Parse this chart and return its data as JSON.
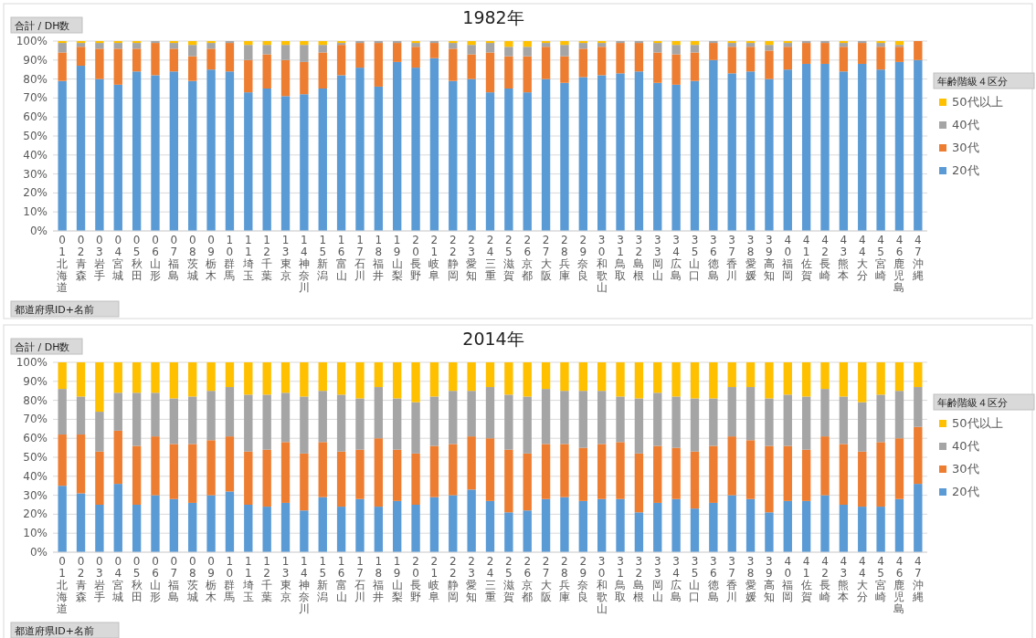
{
  "chart_data": [
    {
      "type": "bar",
      "title": "1982年",
      "ylabel": "合計 / DH数",
      "xlabel": "都道府県ID+名前",
      "legend_title": "年齢階級４区分",
      "stacked": true,
      "grid": "y",
      "legend": "right",
      "ylim": [
        0,
        100
      ],
      "yticks": [
        {
          "value": 0,
          "label": "0%"
        },
        {
          "value": 10,
          "label": "10%"
        },
        {
          "value": 20,
          "label": "20%"
        },
        {
          "value": 30,
          "label": "30%"
        },
        {
          "value": 40,
          "label": "40%"
        },
        {
          "value": 50,
          "label": "50%"
        },
        {
          "value": 60,
          "label": "60%"
        },
        {
          "value": 70,
          "label": "70%"
        },
        {
          "value": 80,
          "label": "80%"
        },
        {
          "value": 90,
          "label": "90%"
        },
        {
          "value": 100,
          "label": "100%"
        }
      ],
      "categories": [
        "01北海道",
        "02青森",
        "03岩手",
        "04宮城",
        "05秋田",
        "06山形",
        "07福島",
        "08茨城",
        "09栃木",
        "10群馬",
        "11埼玉",
        "12千葉",
        "13東京",
        "14神奈川",
        "15新潟",
        "16富山",
        "17石川",
        "18福井",
        "19山梨",
        "20長野",
        "21岐阜",
        "22静岡",
        "23愛知",
        "24三重",
        "25滋賀",
        "26京都",
        "27大阪",
        "28兵庫",
        "29奈良",
        "30和歌山",
        "31鳥取",
        "32島根",
        "33岡山",
        "34広島",
        "35山口",
        "36徳島",
        "37香川",
        "38愛媛",
        "39高知",
        "40福岡",
        "41佐賀",
        "42長崎",
        "43熊本",
        "44大分",
        "45宮崎",
        "46鹿児島",
        "47沖縄"
      ],
      "series": [
        {
          "name": "20代",
          "color": "#5b9bd5",
          "values": [
            79,
            87,
            80,
            77,
            84,
            82,
            84,
            79,
            85,
            84,
            73,
            75,
            71,
            72,
            75,
            82,
            86,
            76,
            89,
            86,
            91,
            79,
            80,
            73,
            75,
            73,
            80,
            78,
            81,
            82,
            83,
            84,
            78,
            77,
            79,
            90,
            83,
            84,
            80,
            85,
            88,
            88,
            84,
            88,
            85,
            89,
            90
          ]
        },
        {
          "name": "30代",
          "color": "#ed7d31",
          "values": [
            15,
            10,
            16,
            19,
            12,
            17,
            12,
            13,
            11,
            15,
            17,
            18,
            19,
            17,
            19,
            16,
            13,
            23,
            10,
            11,
            8,
            17,
            13,
            21,
            17,
            19,
            17,
            14,
            15,
            15,
            16,
            15,
            16,
            16,
            15,
            9,
            14,
            13,
            15,
            12,
            11,
            11,
            13,
            11,
            12,
            8,
            10
          ]
        },
        {
          "name": "40代",
          "color": "#a5a5a5",
          "values": [
            5,
            2,
            3,
            3,
            3,
            1,
            3,
            6,
            3,
            1,
            8,
            5,
            8,
            9,
            4,
            1,
            1,
            1,
            1,
            2,
            1,
            3,
            5,
            5,
            5,
            5,
            2,
            6,
            3,
            2,
            1,
            1,
            5,
            5,
            4,
            1,
            2,
            2,
            3,
            2,
            1,
            1,
            2,
            1,
            2,
            1,
            0
          ]
        },
        {
          "name": "50代以上",
          "color": "#ffc000",
          "values": [
            1,
            1,
            1,
            1,
            1,
            0,
            1,
            2,
            1,
            0,
            2,
            2,
            2,
            2,
            2,
            1,
            0,
            0,
            0,
            1,
            0,
            1,
            2,
            1,
            3,
            3,
            1,
            2,
            1,
            1,
            0,
            0,
            1,
            2,
            2,
            0,
            1,
            1,
            2,
            1,
            0,
            0,
            1,
            0,
            1,
            2,
            0
          ]
        }
      ]
    },
    {
      "type": "bar",
      "title": "2014年",
      "ylabel": "合計 / DH数",
      "xlabel": "都道府県ID+名前",
      "legend_title": "年齢階級４区分",
      "stacked": true,
      "grid": "y",
      "legend": "right",
      "ylim": [
        0,
        100
      ],
      "yticks": [
        {
          "value": 0,
          "label": "0%"
        },
        {
          "value": 10,
          "label": "10%"
        },
        {
          "value": 20,
          "label": "20%"
        },
        {
          "value": 30,
          "label": "30%"
        },
        {
          "value": 40,
          "label": "40%"
        },
        {
          "value": 50,
          "label": "50%"
        },
        {
          "value": 60,
          "label": "60%"
        },
        {
          "value": 70,
          "label": "70%"
        },
        {
          "value": 80,
          "label": "80%"
        },
        {
          "value": 90,
          "label": "90%"
        },
        {
          "value": 100,
          "label": "100%"
        }
      ],
      "categories": [
        "01北海道",
        "02青森",
        "03岩手",
        "04宮城",
        "05秋田",
        "06山形",
        "07福島",
        "08茨城",
        "09栃木",
        "10群馬",
        "11埼玉",
        "12千葉",
        "13東京",
        "14神奈川",
        "15新潟",
        "16富山",
        "17石川",
        "18福井",
        "19山梨",
        "20長野",
        "21岐阜",
        "22静岡",
        "23愛知",
        "24三重",
        "25滋賀",
        "26京都",
        "27大阪",
        "28兵庫",
        "29奈良",
        "30和歌山",
        "31鳥取",
        "32島根",
        "33岡山",
        "34広島",
        "35山口",
        "36徳島",
        "37香川",
        "38愛媛",
        "39高知",
        "40福岡",
        "41佐賀",
        "42長崎",
        "43熊本",
        "44大分",
        "45宮崎",
        "46鹿児島",
        "47沖縄"
      ],
      "series": [
        {
          "name": "20代",
          "color": "#5b9bd5",
          "values": [
            35,
            31,
            25,
            36,
            25,
            30,
            28,
            26,
            30,
            32,
            25,
            24,
            26,
            22,
            29,
            24,
            28,
            24,
            27,
            25,
            29,
            30,
            33,
            27,
            21,
            22,
            28,
            29,
            27,
            28,
            28,
            21,
            26,
            28,
            23,
            26,
            30,
            28,
            21,
            27,
            27,
            30,
            25,
            24,
            24,
            28,
            36
          ]
        },
        {
          "name": "30代",
          "color": "#ed7d31",
          "values": [
            27,
            31,
            28,
            28,
            31,
            31,
            29,
            31,
            29,
            29,
            28,
            30,
            32,
            30,
            29,
            29,
            26,
            36,
            27,
            27,
            27,
            27,
            28,
            33,
            33,
            30,
            29,
            28,
            28,
            29,
            30,
            31,
            30,
            27,
            30,
            30,
            31,
            31,
            35,
            29,
            27,
            31,
            32,
            29,
            34,
            32,
            30
          ]
        },
        {
          "name": "40代",
          "color": "#a5a5a5",
          "values": [
            24,
            20,
            21,
            20,
            28,
            23,
            24,
            25,
            26,
            26,
            30,
            29,
            26,
            30,
            27,
            30,
            27,
            27,
            27,
            27,
            26,
            28,
            24,
            27,
            29,
            30,
            29,
            28,
            30,
            28,
            24,
            29,
            28,
            27,
            28,
            25,
            26,
            28,
            25,
            27,
            28,
            25,
            25,
            26,
            25,
            25,
            21
          ]
        },
        {
          "name": "50代以上",
          "color": "#ffc000",
          "values": [
            14,
            18,
            26,
            16,
            16,
            16,
            19,
            18,
            15,
            13,
            17,
            17,
            16,
            18,
            15,
            17,
            19,
            13,
            19,
            21,
            18,
            15,
            15,
            13,
            17,
            18,
            14,
            15,
            15,
            15,
            18,
            19,
            16,
            18,
            19,
            19,
            13,
            13,
            19,
            17,
            18,
            14,
            18,
            21,
            17,
            15,
            13
          ]
        }
      ]
    }
  ]
}
